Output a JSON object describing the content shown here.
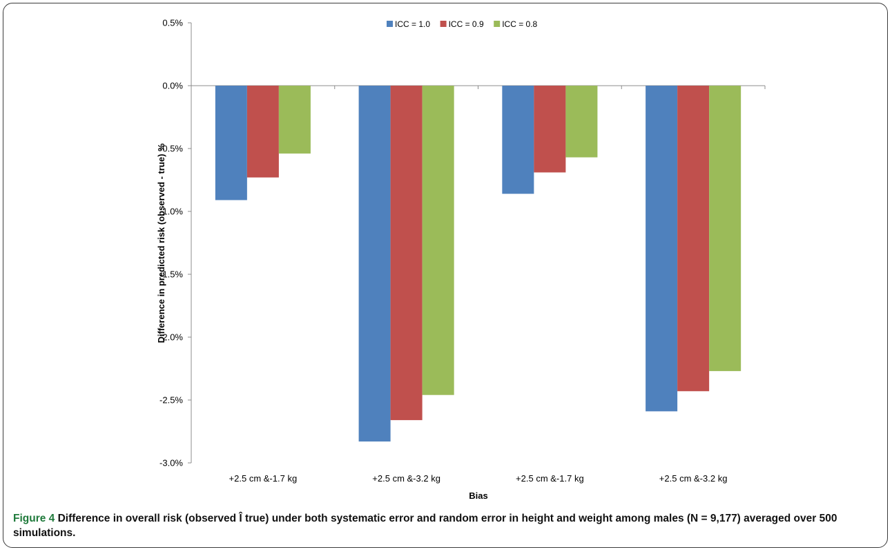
{
  "chart_data": {
    "type": "bar",
    "categories": [
      "+2.5 cm &-1.7 kg",
      "+2.5 cm &-3.2 kg",
      "+2.5 cm &-1.7 kg",
      "+2.5 cm &-3.2 kg"
    ],
    "series": [
      {
        "name": "ICC = 1.0",
        "color": "#4f81bd",
        "values": [
          -0.91,
          -2.83,
          -0.86,
          -2.59
        ]
      },
      {
        "name": "ICC = 0.9",
        "color": "#c0504d",
        "values": [
          -0.73,
          -2.66,
          -0.69,
          -2.43
        ]
      },
      {
        "name": "ICC = 0.8",
        "color": "#9bbb59",
        "values": [
          -0.54,
          -2.46,
          -0.57,
          -2.27
        ]
      }
    ],
    "ylim": [
      -3.0,
      0.5
    ],
    "yticks": [
      "0.5%",
      "0.0%",
      "-0.5%",
      "-1.0%",
      "-1.5%",
      "-2.0%",
      "-2.5%",
      "-3.0%"
    ],
    "ytick_values": [
      0.5,
      0.0,
      -0.5,
      -1.0,
      -1.5,
      -2.0,
      -2.5,
      -3.0
    ],
    "xlabel": "Bias",
    "ylabel": "Difference in predicted risk (observed - true) %",
    "legend_position": "top-center",
    "grid": false
  },
  "caption": {
    "label": "Figure 4",
    "text": "Difference in overall risk (observed Î true) under both systematic error and random error in height and weight among males (N = 9,177) averaged over 500 simulations."
  }
}
